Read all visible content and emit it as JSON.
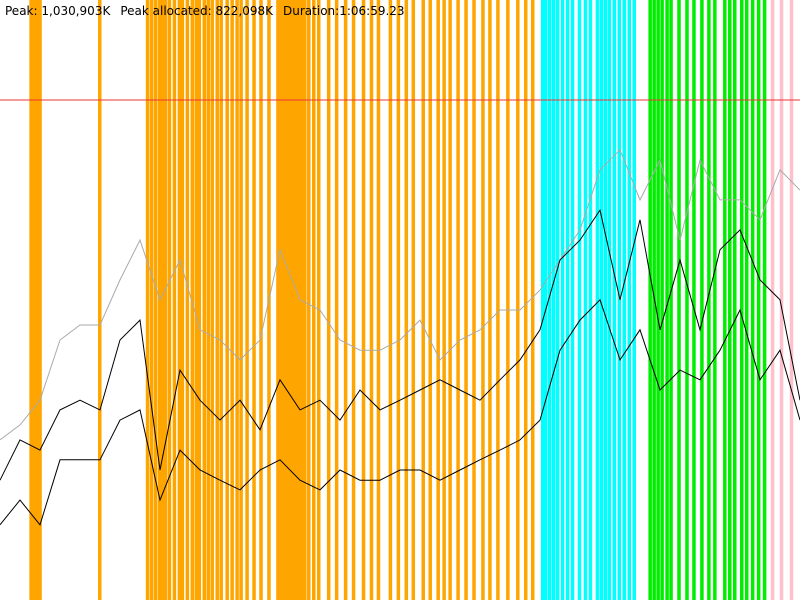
{
  "chart_data": {
    "type": "line",
    "header": {
      "peak_label": "Peak:",
      "allocated_label": "Peak allocated:",
      "allocated": "822,098K",
      "duration_label": "Duration:",
      "duration": "1:06:59.23"
    },
    "peak": {
      "value": 1030903,
      "label": "1,030,903K"
    },
    "peak_color": "#ee3333",
    "ylim": [
      0,
      1237084
    ],
    "xlim": [
      0,
      4019
    ],
    "events": [
      {
        "color": "#ffa500",
        "times": [
          155,
          170,
          185,
          200,
          500,
          740,
          760,
          780,
          800,
          815,
          830,
          850,
          875,
          900,
          915,
          940,
          965,
          985,
          1000,
          1025,
          1045,
          1065,
          1090,
          1110,
          1140,
          1165,
          1190,
          1210,
          1240,
          1275,
          1310,
          1350,
          1395,
          1410,
          1425,
          1440,
          1455,
          1470,
          1485,
          1500,
          1515,
          1530,
          1550,
          1575,
          1600,
          1650,
          1690,
          1735,
          1775,
          1825,
          1865,
          1900,
          1960,
          2000,
          2040,
          2075,
          2125,
          2160,
          2200,
          2230,
          2260,
          2300,
          2340,
          2380,
          2425,
          2460,
          2500,
          2550,
          2600,
          2640,
          2675
        ]
      },
      {
        "color": "#00ffff",
        "times": [
          2725,
          2740,
          2760,
          2780,
          2800,
          2825,
          2850,
          2875,
          2910,
          2940,
          2965,
          3000,
          3020,
          3040,
          3060,
          3085,
          3110,
          3135,
          3160,
          3185
        ]
      },
      {
        "color": "#00ee00",
        "times": [
          3265,
          3285,
          3305,
          3325,
          3350,
          3370,
          3410,
          3450,
          3485,
          3525,
          3560,
          3590,
          3640,
          3665,
          3690,
          3725,
          3750,
          3780,
          3810,
          3840
        ]
      },
      {
        "color": "#ffc0cb",
        "times": [
          3880,
          3925,
          3975
        ]
      }
    ],
    "series": [
      {
        "color": "#aaaaaa",
        "values": [
          330000,
          361000,
          412000,
          536000,
          567000,
          567000,
          660000,
          742000,
          619000,
          701000,
          557000,
          536000,
          495000,
          536000,
          722000,
          619000,
          598000,
          536000,
          515000,
          515000,
          536000,
          577000,
          495000,
          536000,
          557000,
          598000,
          598000,
          639000,
          701000,
          763000,
          887000,
          928000,
          825000,
          907000,
          742000,
          907000,
          825000,
          825000,
          784000,
          887000,
          845000
        ]
      },
      {
        "color": "#000000",
        "values": [
          247000,
          330000,
          309000,
          392000,
          412000,
          392000,
          536000,
          577000,
          268000,
          474000,
          412000,
          371000,
          412000,
          351000,
          454000,
          392000,
          412000,
          371000,
          433000,
          392000,
          412000,
          433000,
          454000,
          433000,
          412000,
          454000,
          495000,
          557000,
          701000,
          742000,
          804000,
          619000,
          784000,
          557000,
          701000,
          557000,
          722000,
          763000,
          660000,
          619000,
          412000
        ]
      },
      {
        "color": "#000000",
        "values": [
          155000,
          206000,
          155000,
          289000,
          289000,
          289000,
          371000,
          392000,
          206000,
          309000,
          268000,
          247000,
          227000,
          268000,
          289000,
          247000,
          227000,
          268000,
          247000,
          247000,
          268000,
          268000,
          247000,
          268000,
          289000,
          309000,
          330000,
          371000,
          515000,
          577000,
          619000,
          495000,
          557000,
          433000,
          474000,
          454000,
          515000,
          598000,
          454000,
          515000,
          371000
        ]
      }
    ]
  }
}
